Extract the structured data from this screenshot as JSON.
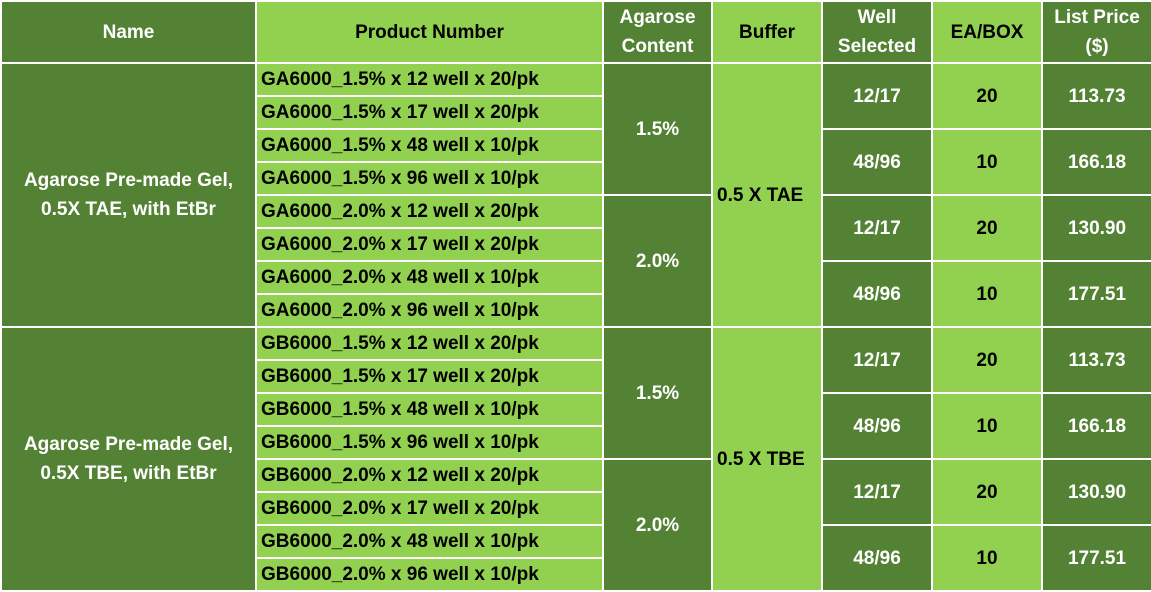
{
  "header": {
    "columns": [
      "Name",
      "Product Number",
      "Agarose Content",
      "Buffer",
      "Well Selected",
      "EA/BOX",
      "List Price ($)"
    ]
  },
  "groups": [
    {
      "name": "Agarose Pre-made Gel, 0.5X TAE, with EtBr",
      "buffer": "0.5 X TAE",
      "subgroups": [
        {
          "content": "1.5%",
          "products": [
            "GA6000_1.5% x 12 well x 20/pk",
            "GA6000_1.5% x 17 well x 20/pk",
            "GA6000_1.5% x 48 well x 10/pk",
            "GA6000_1.5% x 96 well x 10/pk"
          ],
          "pricing": [
            {
              "well": "12/17",
              "ea": "20",
              "price": "113.73"
            },
            {
              "well": "48/96",
              "ea": "10",
              "price": "166.18"
            }
          ]
        },
        {
          "content": "2.0%",
          "products": [
            "GA6000_2.0% x 12 well x 20/pk",
            "GA6000_2.0% x 17 well x 20/pk",
            "GA6000_2.0% x 48 well x 10/pk",
            "GA6000_2.0% x 96 well x 10/pk"
          ],
          "pricing": [
            {
              "well": "12/17",
              "ea": "20",
              "price": "130.90"
            },
            {
              "well": "48/96",
              "ea": "10",
              "price": "177.51"
            }
          ]
        }
      ]
    },
    {
      "name": "Agarose Pre-made Gel, 0.5X TBE, with EtBr",
      "buffer": "0.5 X TBE",
      "subgroups": [
        {
          "content": "1.5%",
          "products": [
            "GB6000_1.5% x 12 well x 20/pk",
            "GB6000_1.5% x 17 well x 20/pk",
            "GB6000_1.5% x 48 well x 10/pk",
            "GB6000_1.5% x 96 well x 10/pk"
          ],
          "pricing": [
            {
              "well": "12/17",
              "ea": "20",
              "price": "113.73"
            },
            {
              "well": "48/96",
              "ea": "10",
              "price": "166.18"
            }
          ]
        },
        {
          "content": "2.0%",
          "products": [
            "GB6000_2.0% x 12 well x 20/pk",
            "GB6000_2.0% x 17 well x 20/pk",
            "GB6000_2.0% x 48 well x 10/pk",
            "GB6000_2.0% x 96 well x 10/pk"
          ],
          "pricing": [
            {
              "well": "12/17",
              "ea": "20",
              "price": "130.90"
            },
            {
              "well": "48/96",
              "ea": "10",
              "price": "177.51"
            }
          ]
        }
      ]
    }
  ]
}
